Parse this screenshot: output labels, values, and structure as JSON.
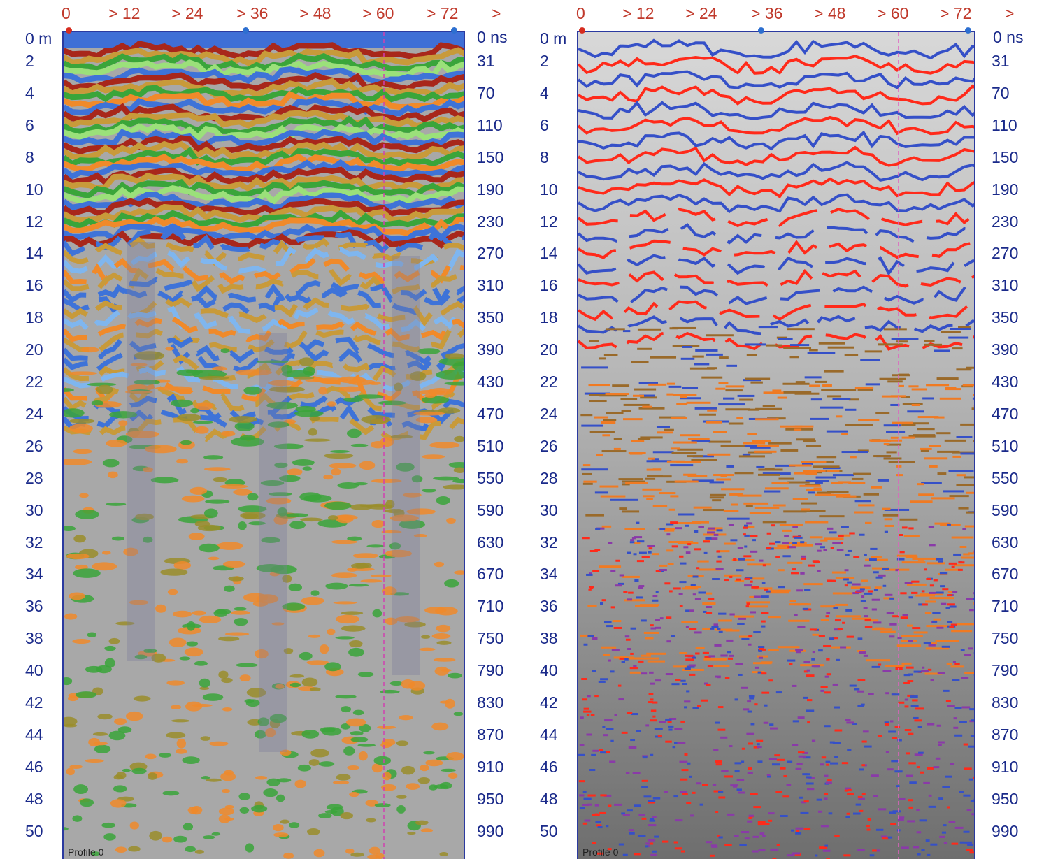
{
  "panels": [
    {
      "id": "color-profile",
      "top_axis_labels": [
        "0",
        "> 12",
        "> 24",
        "> 36",
        "> 48",
        "> 60",
        "> 72",
        ">"
      ],
      "depth_unit_label": "0 m",
      "depth_labels": [
        "2",
        "4",
        "6",
        "8",
        "10",
        "12",
        "14",
        "16",
        "18",
        "20",
        "22",
        "24",
        "26",
        "28",
        "30",
        "32",
        "34",
        "36",
        "38",
        "40",
        "42",
        "44",
        "46",
        "48",
        "50"
      ],
      "time_unit_label": "0 ns",
      "time_labels": [
        "31",
        "70",
        "110",
        "150",
        "190",
        "230",
        "270",
        "310",
        "350",
        "390",
        "430",
        "470",
        "510",
        "550",
        "590",
        "630",
        "670",
        "710",
        "750",
        "790",
        "830",
        "870",
        "910",
        "950",
        "990"
      ],
      "profile_label": "Profile 0",
      "palette": {
        "surface": "#3f6fd6",
        "red": "#a8271b",
        "green": "#3aa53a",
        "lightgreen": "#9be07a",
        "orange": "#f08a2a",
        "tan": "#c89a3a",
        "blue": "#3e73d8",
        "lightblue": "#7fb6ef",
        "grey": "#a8a8a8",
        "olive": "#9a8d2a"
      }
    },
    {
      "id": "picked-profile",
      "top_axis_labels": [
        "0",
        "> 12",
        "> 24",
        "> 36",
        "> 48",
        "> 60",
        "> 72",
        ">"
      ],
      "depth_unit_label": "0 m",
      "depth_labels": [
        "2",
        "4",
        "6",
        "8",
        "10",
        "12",
        "14",
        "16",
        "18",
        "20",
        "22",
        "24",
        "26",
        "28",
        "30",
        "32",
        "34",
        "36",
        "38",
        "40",
        "42",
        "44",
        "46",
        "48",
        "50"
      ],
      "time_unit_label": "0 ns",
      "time_labels": [
        "31",
        "70",
        "110",
        "150",
        "190",
        "230",
        "270",
        "310",
        "350",
        "390",
        "430",
        "470",
        "510",
        "550",
        "590",
        "630",
        "670",
        "710",
        "750",
        "790",
        "830",
        "870",
        "910",
        "950",
        "990"
      ],
      "profile_label": "Profile 0",
      "palette": {
        "background": "#8c8c8c",
        "red": "#ff2a1a",
        "blue": "#3550c8",
        "orange": "#f07a22",
        "brown": "#9a6a2a",
        "purple": "#8a3aa8"
      }
    }
  ]
}
